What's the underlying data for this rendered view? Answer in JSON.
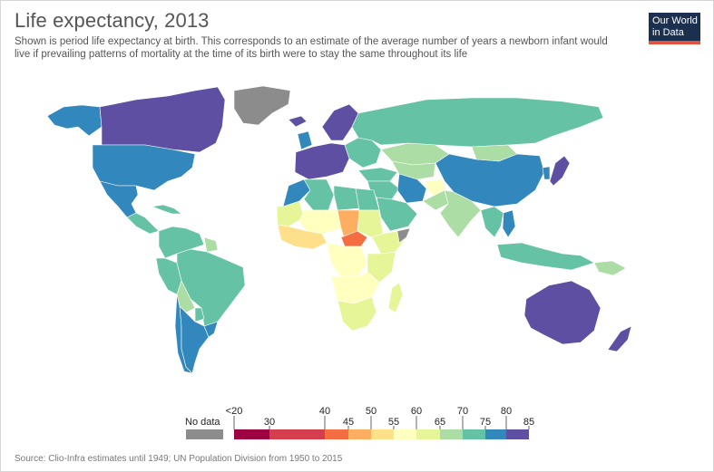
{
  "header": {
    "title": "Life expectancy, 2013",
    "subtitle": "Shown is period life expectancy at birth. This corresponds to an estimate of the average number of years a newborn infant would live if prevailing patterns of mortality at the time of its birth were to stay the same throughout its life"
  },
  "logo": {
    "line1": "Our World",
    "line2": "in Data"
  },
  "legend": {
    "no_data_label": "No data",
    "no_data_color": "#8c8c8c",
    "ticks": [
      "<20",
      "30",
      "40",
      "45",
      "50",
      "55",
      "60",
      "65",
      "70",
      "75",
      "80",
      "85"
    ],
    "bins": [
      {
        "color": "#9e0142"
      },
      {
        "color": "#d53e4f"
      },
      {
        "color": "#f46d43"
      },
      {
        "color": "#fdae61"
      },
      {
        "color": "#fee08b"
      },
      {
        "color": "#ffffbf"
      },
      {
        "color": "#e6f598"
      },
      {
        "color": "#abdda4"
      },
      {
        "color": "#66c2a5"
      },
      {
        "color": "#3288bd"
      },
      {
        "color": "#5e4fa2"
      }
    ]
  },
  "regions": [
    {
      "name": "Canada",
      "color": "#5e4fa2"
    },
    {
      "name": "Alaska",
      "color": "#3288bd"
    },
    {
      "name": "Greenland",
      "color": "#8c8c8c"
    },
    {
      "name": "United States",
      "color": "#3288bd"
    },
    {
      "name": "Mexico",
      "color": "#3288bd"
    },
    {
      "name": "Central America",
      "color": "#66c2a5"
    },
    {
      "name": "Caribbean",
      "color": "#66c2a5"
    },
    {
      "name": "Colombia/Venezuela",
      "color": "#66c2a5"
    },
    {
      "name": "Guianas",
      "color": "#abdda4"
    },
    {
      "name": "Brazil",
      "color": "#66c2a5"
    },
    {
      "name": "Peru/Ecuador",
      "color": "#66c2a5"
    },
    {
      "name": "Bolivia",
      "color": "#abdda4"
    },
    {
      "name": "Paraguay",
      "color": "#66c2a5"
    },
    {
      "name": "Chile",
      "color": "#3288bd"
    },
    {
      "name": "Argentina",
      "color": "#3288bd"
    },
    {
      "name": "Uruguay",
      "color": "#3288bd"
    },
    {
      "name": "Iceland",
      "color": "#5e4fa2"
    },
    {
      "name": "Scandinavia",
      "color": "#5e4fa2"
    },
    {
      "name": "Western Europe",
      "color": "#5e4fa2"
    },
    {
      "name": "UK/Ireland",
      "color": "#3288bd"
    },
    {
      "name": "Eastern Europe",
      "color": "#66c2a5"
    },
    {
      "name": "Russia",
      "color": "#66c2a5"
    },
    {
      "name": "Kazakhstan",
      "color": "#abdda4"
    },
    {
      "name": "Central Asia",
      "color": "#abdda4"
    },
    {
      "name": "Mongolia",
      "color": "#abdda4"
    },
    {
      "name": "China",
      "color": "#3288bd"
    },
    {
      "name": "Korea",
      "color": "#3288bd"
    },
    {
      "name": "Japan",
      "color": "#5e4fa2"
    },
    {
      "name": "Turkey",
      "color": "#66c2a5"
    },
    {
      "name": "Middle East",
      "color": "#66c2a5"
    },
    {
      "name": "Saudi Arabia",
      "color": "#66c2a5"
    },
    {
      "name": "Iran",
      "color": "#3288bd"
    },
    {
      "name": "Afghanistan",
      "color": "#ffffbf"
    },
    {
      "name": "Pakistan",
      "color": "#abdda4"
    },
    {
      "name": "India",
      "color": "#abdda4"
    },
    {
      "name": "Southeast Asia",
      "color": "#66c2a5"
    },
    {
      "name": "Vietnam",
      "color": "#3288bd"
    },
    {
      "name": "Indonesia",
      "color": "#66c2a5"
    },
    {
      "name": "Papua New Guinea",
      "color": "#abdda4"
    },
    {
      "name": "Australia",
      "color": "#5e4fa2"
    },
    {
      "name": "New Zealand",
      "color": "#5e4fa2"
    },
    {
      "name": "Morocco",
      "color": "#3288bd"
    },
    {
      "name": "Algeria",
      "color": "#66c2a5"
    },
    {
      "name": "Libya",
      "color": "#66c2a5"
    },
    {
      "name": "Egypt",
      "color": "#66c2a5"
    },
    {
      "name": "Mauritania",
      "color": "#e6f598"
    },
    {
      "name": "Mali/Niger",
      "color": "#ffffbf"
    },
    {
      "name": "Chad",
      "color": "#fdae61"
    },
    {
      "name": "Sudan",
      "color": "#e6f598"
    },
    {
      "name": "West Africa coast",
      "color": "#fee08b"
    },
    {
      "name": "Central African Republic",
      "color": "#f46d43"
    },
    {
      "name": "Ethiopia/Horn",
      "color": "#e6f598"
    },
    {
      "name": "Somalia",
      "color": "#8c8c8c"
    },
    {
      "name": "DR Congo",
      "color": "#ffffbf"
    },
    {
      "name": "Kenya/Tanzania",
      "color": "#e6f598"
    },
    {
      "name": "Angola/Zambia",
      "color": "#ffffbf"
    },
    {
      "name": "Southern Africa",
      "color": "#e6f598"
    },
    {
      "name": "Madagascar",
      "color": "#e6f598"
    }
  ],
  "footer": {
    "source": "Source: Clio-Infra estimates until 1949; UN Population Division from 1950 to 2015"
  }
}
